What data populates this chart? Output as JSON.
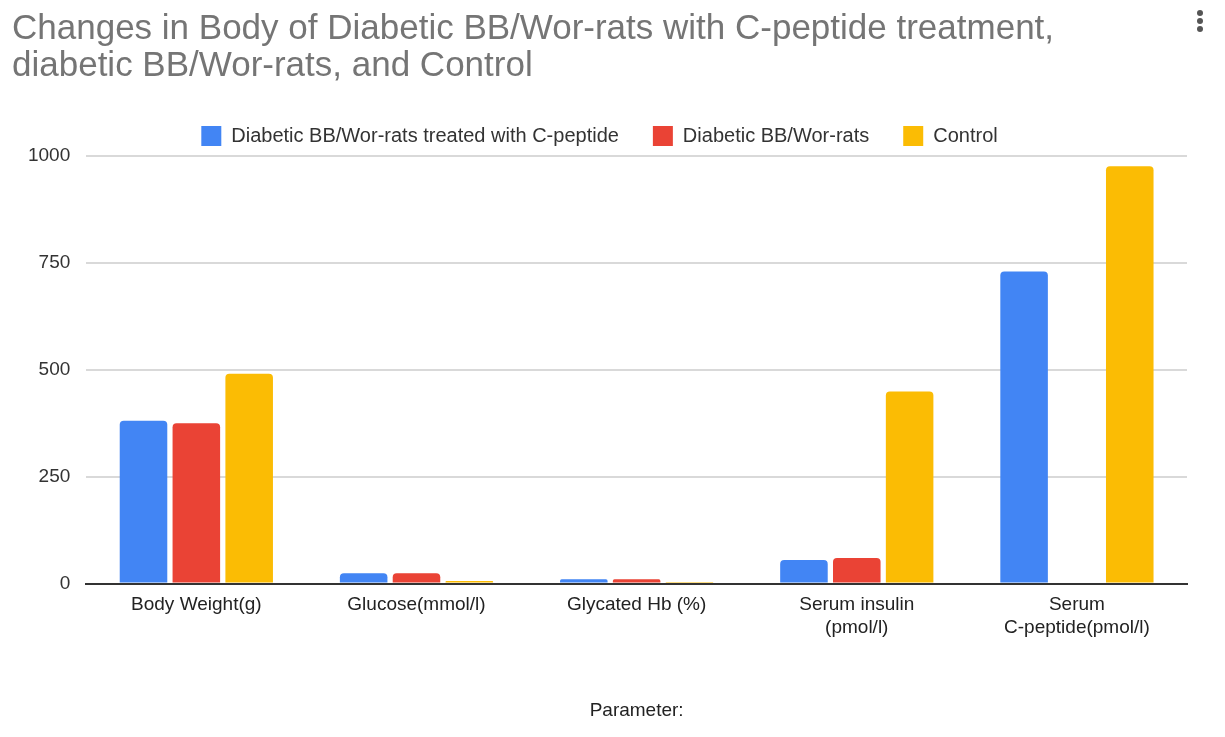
{
  "chart_data": {
    "type": "bar",
    "title": "Changes in Body of Diabetic BB/Wor-rats with C-peptide treatment, diabetic BB/Wor-rats, and Control",
    "xlabel": "Parameter:",
    "categories": [
      "Body Weight(g)",
      "Glucose(mmol/l)",
      "Glycated Hb (%)",
      "Serum insulin (pmol/l)",
      "Serum C-peptide(pmol/l)"
    ],
    "series": [
      {
        "name": "Diabetic BB/Wor-rats treated with C-peptide",
        "color": "#4285f4",
        "values": [
          381,
          24,
          10,
          55,
          730
        ]
      },
      {
        "name": "Diabetic BB/Wor-rats",
        "color": "#ea4335",
        "values": [
          375,
          24,
          10,
          60,
          null
        ]
      },
      {
        "name": "Control",
        "color": "#fbbc04",
        "values": [
          491,
          6,
          4,
          449,
          976
        ]
      }
    ],
    "ylim": [
      0,
      1000
    ],
    "yticks": [
      0,
      250,
      500,
      750,
      1000
    ],
    "grid": "y",
    "legend": "top"
  }
}
